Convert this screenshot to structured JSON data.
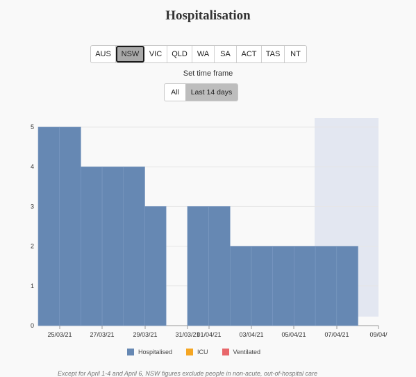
{
  "title": "Hospitalisation",
  "states": [
    {
      "label": "AUS",
      "active": false
    },
    {
      "label": "NSW",
      "active": true
    },
    {
      "label": "VIC",
      "active": false
    },
    {
      "label": "QLD",
      "active": false
    },
    {
      "label": "WA",
      "active": false
    },
    {
      "label": "SA",
      "active": false
    },
    {
      "label": "ACT",
      "active": false
    },
    {
      "label": "TAS",
      "active": false
    },
    {
      "label": "NT",
      "active": false
    }
  ],
  "time_frame": {
    "label": "Set time frame",
    "options": [
      {
        "label": "All",
        "active": false
      },
      {
        "label": "Last 14 days",
        "active": true
      }
    ]
  },
  "legend": [
    {
      "label": "Hospitalised",
      "color": "#6688b3"
    },
    {
      "label": "ICU",
      "color": "#f5a623"
    },
    {
      "label": "Ventilated",
      "color": "#e8676b"
    }
  ],
  "footnote": "Except for April 1-4 and April 6, NSW figures exclude people in non-acute, out-of-hospital care",
  "chart_data": {
    "type": "bar",
    "categories": [
      "24/03/21",
      "25/03/21",
      "26/03/21",
      "27/03/21",
      "28/03/21",
      "29/03/21",
      "30/03/21",
      "31/03/21",
      "01/04/21",
      "02/04/21",
      "03/04/21",
      "04/04/21",
      "05/04/21",
      "06/04/21",
      "07/04/21",
      "08/04/21"
    ],
    "series": [
      {
        "name": "Hospitalised",
        "values": [
          5,
          5,
          4,
          4,
          4,
          3,
          null,
          3,
          3,
          2,
          2,
          2,
          2,
          2,
          2,
          null
        ]
      }
    ],
    "x_ticks": [
      "25/03/21",
      "27/03/21",
      "29/03/21",
      "31/03/21",
      "01/04/21",
      "03/04/21",
      "05/04/21",
      "07/04/21",
      "09/04/"
    ],
    "y_ticks": [
      0,
      1,
      2,
      3,
      4,
      5
    ],
    "ylim": [
      0,
      5
    ],
    "shaded_range": [
      "07/04/21",
      "09/04/21"
    ],
    "grid": true
  }
}
